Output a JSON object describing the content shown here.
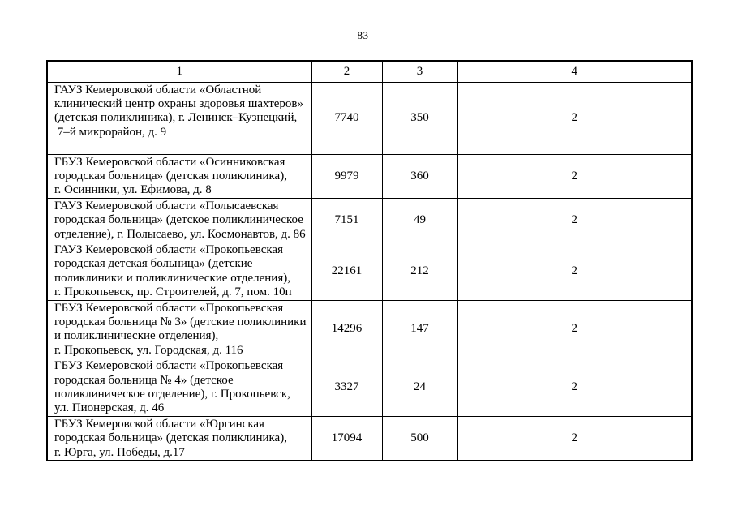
{
  "page": {
    "number": "83"
  },
  "colors": {
    "background": "#ffffff",
    "text": "#000000",
    "table_border": "#000000"
  },
  "table": {
    "headers": [
      "1",
      "2",
      "3",
      "4"
    ],
    "rows": [
      {
        "name": "ГАУЗ Кемеровской области «Областной\nклинический центр охраны здоровья шахтеров»\n(детская поликлиника), г. Ленинск–Кузнецкий,\n 7–й микрорайон, д. 9",
        "col2": "7740",
        "col3": "350",
        "col4": "2"
      },
      {
        "name": "ГБУЗ Кемеровской области «Осинниковская\nгородская больница» (детская поликлиника),\nг. Осинники, ул. Ефимова, д. 8",
        "col2": "9979",
        "col3": "360",
        "col4": "2"
      },
      {
        "name": "ГАУЗ Кемеровской области «Полысаевская\nгородская больница» (детское поликлиническое\nотделение), г. Полысаево, ул. Космонавтов, д. 86",
        "col2": "7151",
        "col3": "49",
        "col4": "2"
      },
      {
        "name": "ГАУЗ Кемеровской области «Прокопьевская\nгородская детская больница» (детские\nполиклиники и поликлинические отделения),\nг. Прокопьевск, пр. Строителей, д. 7, пом. 10п",
        "col2": "22161",
        "col3": "212",
        "col4": "2"
      },
      {
        "name": "ГБУЗ Кемеровской области «Прокопьевская\nгородская больница № 3» (детские поликлиники\nи поликлинические отделения),\nг. Прокопьевск, ул. Городская, д. 116",
        "col2": "14296",
        "col3": "147",
        "col4": "2"
      },
      {
        "name": "ГБУЗ Кемеровской области «Прокопьевская\nгородская больница № 4» (детское\nполиклиническое отделение), г. Прокопьевск,\nул. Пионерская, д. 46",
        "col2": "3327",
        "col3": "24",
        "col4": "2"
      },
      {
        "name": "ГБУЗ Кемеровской области «Юргинская\nгородская больница» (детская поликлиника),\nг. Юрга, ул. Победы, д.17",
        "col2": "17094",
        "col3": "500",
        "col4": "2"
      }
    ]
  }
}
